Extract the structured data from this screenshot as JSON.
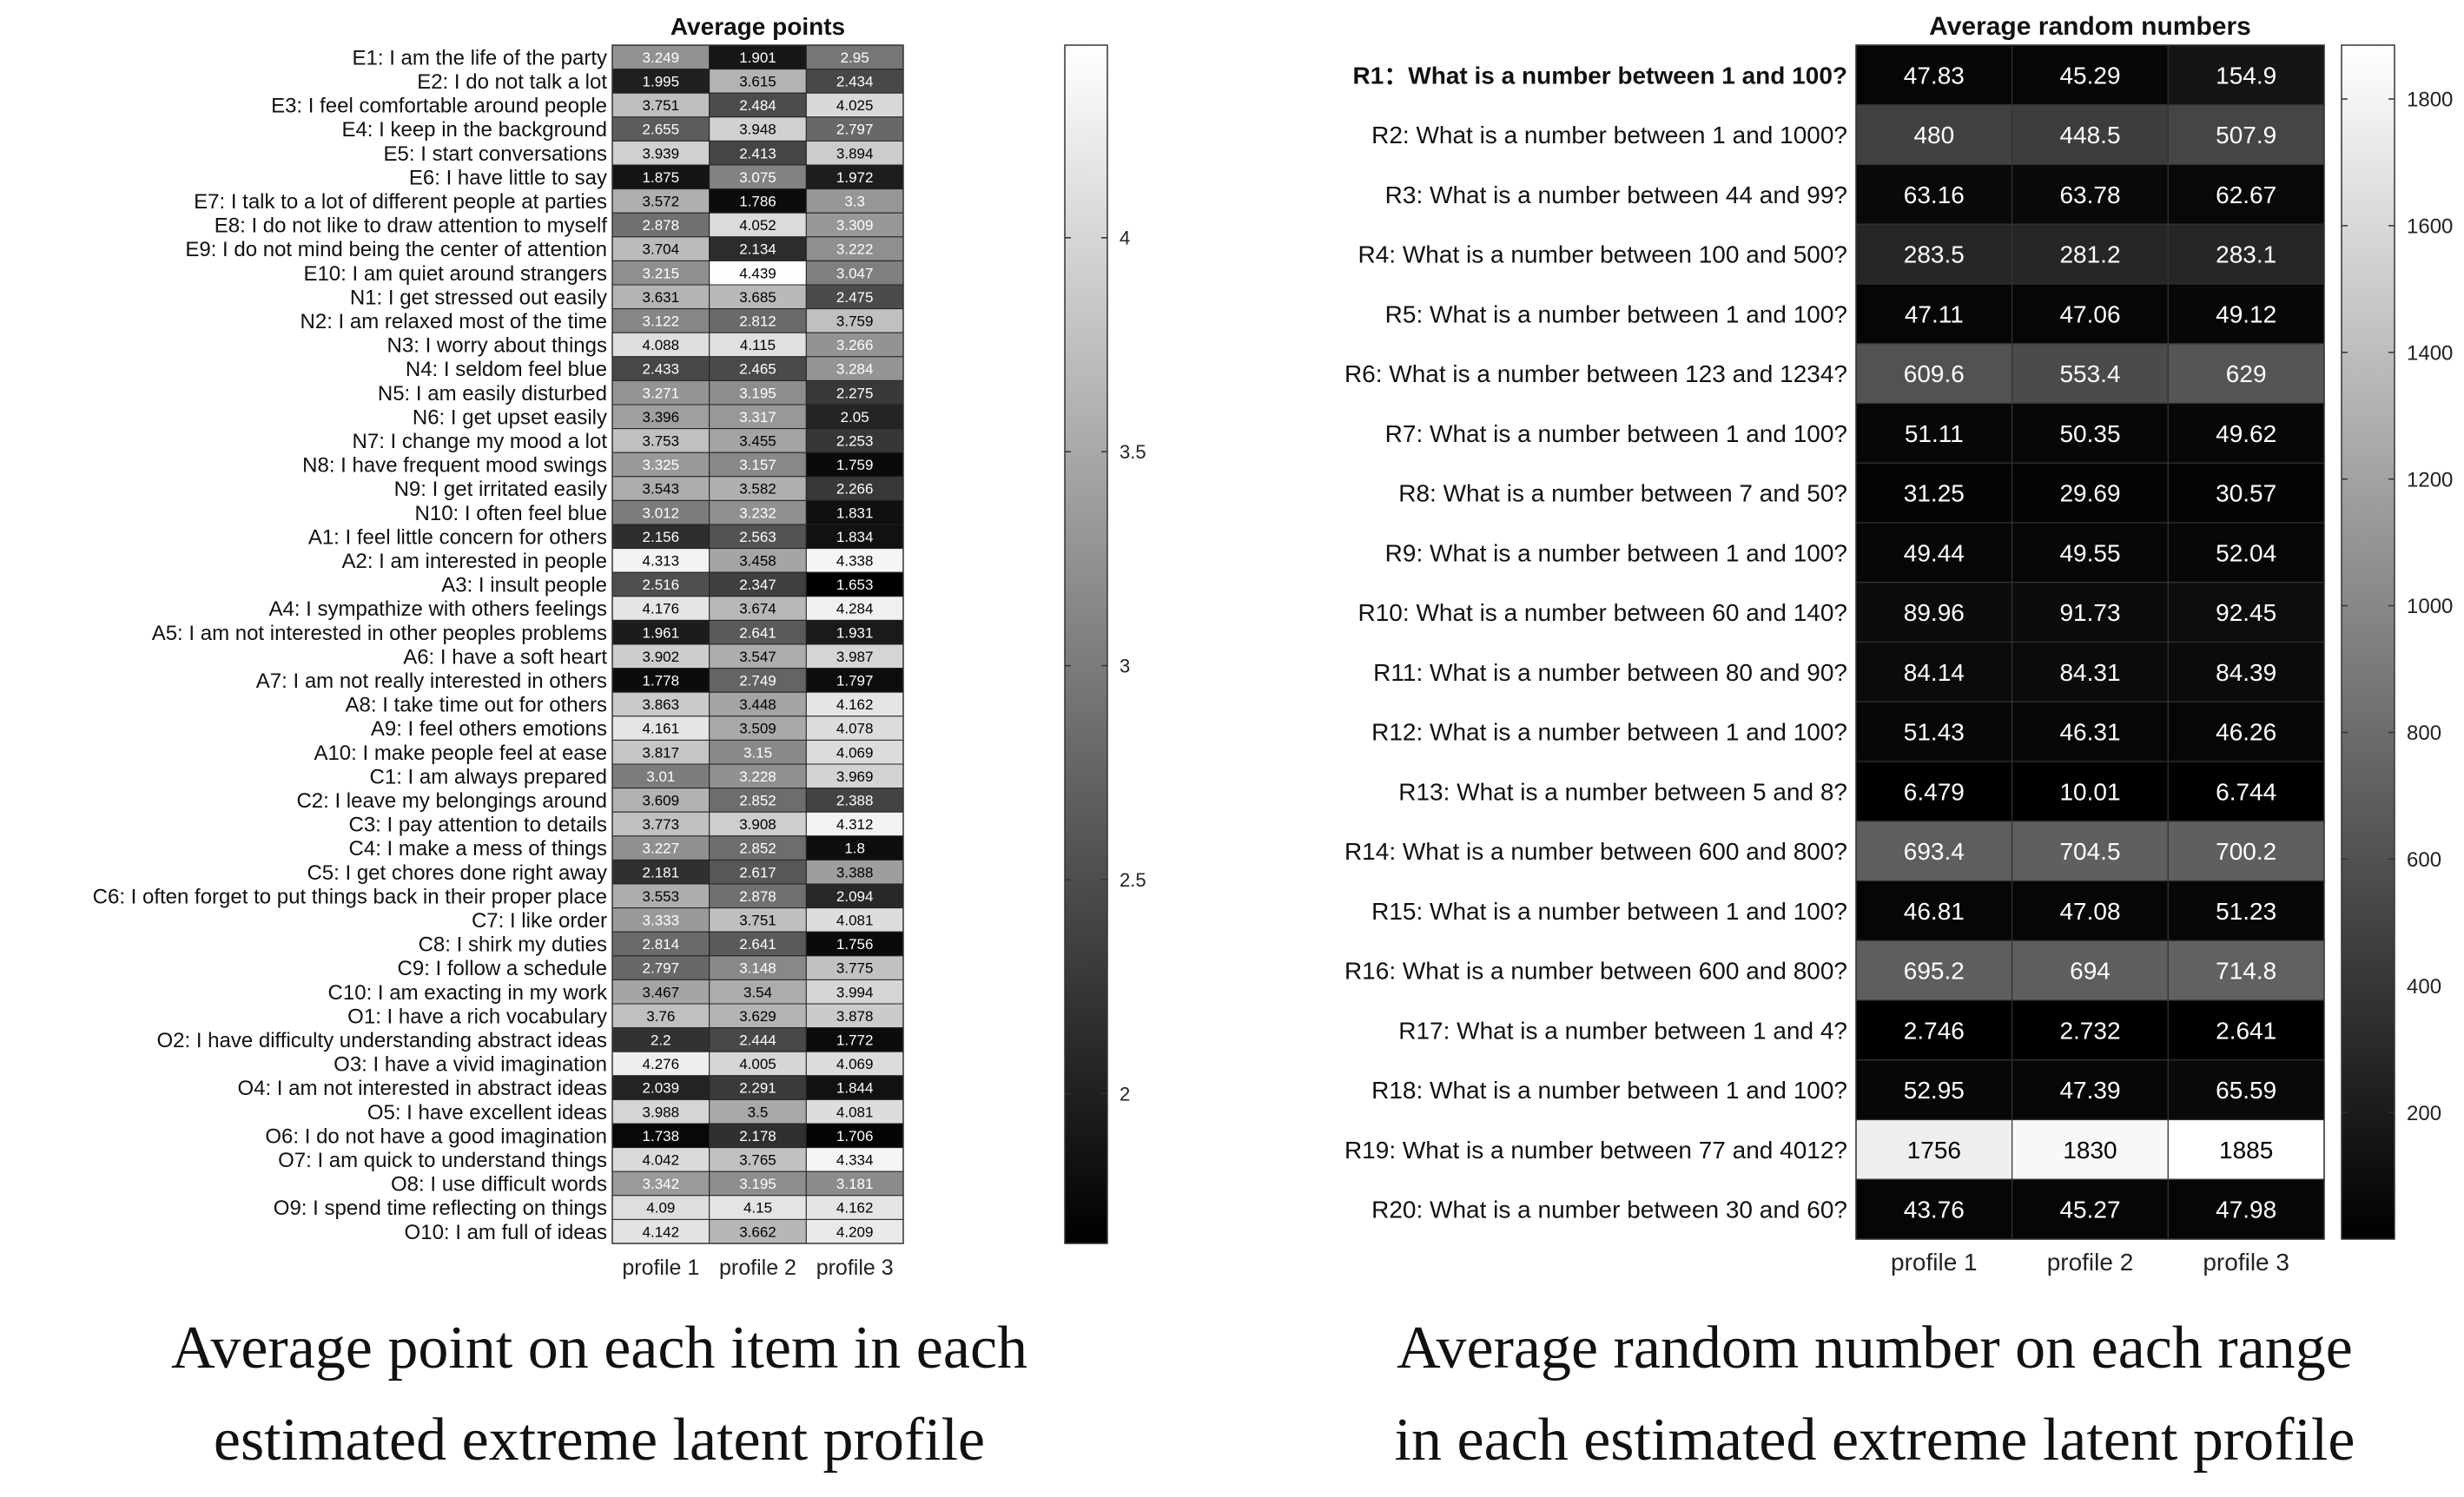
{
  "chart_data": [
    {
      "type": "heatmap",
      "title": "Average points",
      "columns": [
        "profile 1",
        "profile 2",
        "profile 3"
      ],
      "rows": [
        "E1: I am the life of the party",
        "E2: I do not talk a lot",
        "E3: I feel comfortable around people",
        "E4: I keep in the background",
        "E5: I start conversations",
        "E6: I have little to say",
        "E7: I talk to a lot of different people at parties",
        "E8: I do not like to draw attention to myself",
        "E9: I do not mind being the center of attention",
        "E10: I am quiet around strangers",
        "N1: I get stressed out easily",
        "N2: I am relaxed most of the time",
        "N3: I worry about things",
        "N4: I seldom feel blue",
        "N5: I am easily disturbed",
        "N6: I get upset easily",
        "N7: I change my mood a lot",
        "N8: I have frequent mood swings",
        "N9: I get irritated easily",
        "N10: I often feel blue",
        "A1: I feel little concern for others",
        "A2: I am interested in people",
        "A3: I insult people",
        "A4: I sympathize with others feelings",
        "A5: I am not interested in other peoples problems",
        "A6: I have a soft heart",
        "A7: I am not really interested in others",
        "A8: I take time out for others",
        "A9: I feel others emotions",
        "A10: I make people feel at ease",
        "C1: I am always prepared",
        "C2: I leave my belongings around",
        "C3: I pay attention to details",
        "C4: I make a mess of things",
        "C5: I get chores done right away",
        "C6: I often forget to put things back in their proper place",
        "C7: I like order",
        "C8: I shirk my duties",
        "C9: I follow a schedule",
        "C10: I am exacting in my work",
        "O1: I have a rich vocabulary",
        "O2: I have difficulty understanding abstract ideas",
        "O3: I have a vivid imagination",
        "O4: I am not interested in abstract ideas",
        "O5: I have excellent ideas",
        "O6: I do not have a good imagination",
        "O7: I am quick to understand things",
        "O8: I use difficult words",
        "O9: I spend time reflecting on things",
        "O10: I am full of ideas"
      ],
      "values": [
        [
          "3.249",
          "1.901",
          "2.95"
        ],
        [
          "1.995",
          "3.615",
          "2.434"
        ],
        [
          "3.751",
          "2.484",
          "4.025"
        ],
        [
          "2.655",
          "3.948",
          "2.797"
        ],
        [
          "3.939",
          "2.413",
          "3.894"
        ],
        [
          "1.875",
          "3.075",
          "1.972"
        ],
        [
          "3.572",
          "1.786",
          "3.3"
        ],
        [
          "2.878",
          "4.052",
          "3.309"
        ],
        [
          "3.704",
          "2.134",
          "3.222"
        ],
        [
          "3.215",
          "4.439",
          "3.047"
        ],
        [
          "3.631",
          "3.685",
          "2.475"
        ],
        [
          "3.122",
          "2.812",
          "3.759"
        ],
        [
          "4.088",
          "4.115",
          "3.266"
        ],
        [
          "2.433",
          "2.465",
          "3.284"
        ],
        [
          "3.271",
          "3.195",
          "2.275"
        ],
        [
          "3.396",
          "3.317",
          "2.05"
        ],
        [
          "3.753",
          "3.455",
          "2.253"
        ],
        [
          "3.325",
          "3.157",
          "1.759"
        ],
        [
          "3.543",
          "3.582",
          "2.266"
        ],
        [
          "3.012",
          "3.232",
          "1.831"
        ],
        [
          "2.156",
          "2.563",
          "1.834"
        ],
        [
          "4.313",
          "3.458",
          "4.338"
        ],
        [
          "2.516",
          "2.347",
          "1.653"
        ],
        [
          "4.176",
          "3.674",
          "4.284"
        ],
        [
          "1.961",
          "2.641",
          "1.931"
        ],
        [
          "3.902",
          "3.547",
          "3.987"
        ],
        [
          "1.778",
          "2.749",
          "1.797"
        ],
        [
          "3.863",
          "3.448",
          "4.162"
        ],
        [
          "4.161",
          "3.509",
          "4.078"
        ],
        [
          "3.817",
          "3.15",
          "4.069"
        ],
        [
          "3.01",
          "3.228",
          "3.969"
        ],
        [
          "3.609",
          "2.852",
          "2.388"
        ],
        [
          "3.773",
          "3.908",
          "4.312"
        ],
        [
          "3.227",
          "2.852",
          "1.8"
        ],
        [
          "2.181",
          "2.617",
          "3.388"
        ],
        [
          "3.553",
          "2.878",
          "2.094"
        ],
        [
          "3.333",
          "3.751",
          "4.081"
        ],
        [
          "2.814",
          "2.641",
          "1.756"
        ],
        [
          "2.797",
          "3.148",
          "3.775"
        ],
        [
          "3.467",
          "3.54",
          "3.994"
        ],
        [
          "3.76",
          "3.629",
          "3.878"
        ],
        [
          "2.2",
          "2.444",
          "1.772"
        ],
        [
          "4.276",
          "4.005",
          "4.069"
        ],
        [
          "2.039",
          "2.291",
          "1.844"
        ],
        [
          "3.988",
          "3.5",
          "4.081"
        ],
        [
          "1.738",
          "2.178",
          "1.706"
        ],
        [
          "4.042",
          "3.765",
          "4.334"
        ],
        [
          "3.342",
          "3.195",
          "3.181"
        ],
        [
          "4.09",
          "4.15",
          "4.162"
        ],
        [
          "4.142",
          "3.662",
          "4.209"
        ]
      ],
      "color_range": [
        1.65,
        4.45
      ],
      "colorbar_ticks": [
        "2",
        "2.5",
        "3",
        "3.5",
        "4"
      ],
      "colormap": "gray"
    },
    {
      "type": "heatmap",
      "title": "Average random numbers",
      "columns": [
        "profile 1",
        "profile 2",
        "profile 3"
      ],
      "rows": [
        "R1：What is a number between 1 and 100?",
        "R2: What is a number between 1 and 1000?",
        "R3: What is a number between 44 and 99?",
        "R4: What is a number between 100 and 500?",
        "R5: What is a number between 1 and 100?",
        "R6: What is a number between 123 and 1234?",
        "R7: What is a number between 1 and 100?",
        "R8: What is a number between 7 and 50?",
        "R9: What is a number between 1 and 100?",
        "R10: What is a number between 60 and 140?",
        "R11: What is a number between 80 and 90?",
        "R12: What is a number between 1 and 100?",
        "R13: What is a number between 5 and 8?",
        "R14: What is a number between 600 and 800?",
        "R15: What is a number between 1 and 100?",
        "R16: What is a number between 600 and 800?",
        "R17: What is a number between 1 and 4?",
        "R18: What is a number between 1 and 100?",
        "R19: What is a number between 77 and 4012?",
        "R20: What is a number between 30 and 60?"
      ],
      "bold_rows": [
        0
      ],
      "values": [
        [
          "47.83",
          "45.29",
          "154.9"
        ],
        [
          "480",
          "448.5",
          "507.9"
        ],
        [
          "63.16",
          "63.78",
          "62.67"
        ],
        [
          "283.5",
          "281.2",
          "283.1"
        ],
        [
          "47.11",
          "47.06",
          "49.12"
        ],
        [
          "609.6",
          "553.4",
          "629"
        ],
        [
          "51.11",
          "50.35",
          "49.62"
        ],
        [
          "31.25",
          "29.69",
          "30.57"
        ],
        [
          "49.44",
          "49.55",
          "52.04"
        ],
        [
          "89.96",
          "91.73",
          "92.45"
        ],
        [
          "84.14",
          "84.31",
          "84.39"
        ],
        [
          "51.43",
          "46.31",
          "46.26"
        ],
        [
          "6.479",
          "10.01",
          "6.744"
        ],
        [
          "693.4",
          "704.5",
          "700.2"
        ],
        [
          "46.81",
          "47.08",
          "51.23"
        ],
        [
          "695.2",
          "694",
          "714.8"
        ],
        [
          "2.746",
          "2.732",
          "2.641"
        ],
        [
          "52.95",
          "47.39",
          "65.59"
        ],
        [
          "1756",
          "1830",
          "1885"
        ],
        [
          "43.76",
          "45.27",
          "47.98"
        ]
      ],
      "color_range": [
        0,
        1885
      ],
      "colorbar_ticks": [
        "200",
        "400",
        "600",
        "800",
        "1000",
        "1200",
        "1400",
        "1600",
        "1800"
      ],
      "colormap": "gray"
    }
  ],
  "captions": {
    "left": [
      "Average point on each item in each",
      "estimated extreme latent profile"
    ],
    "right": [
      "Average random number on each range",
      "in each estimated extreme latent profile"
    ]
  }
}
